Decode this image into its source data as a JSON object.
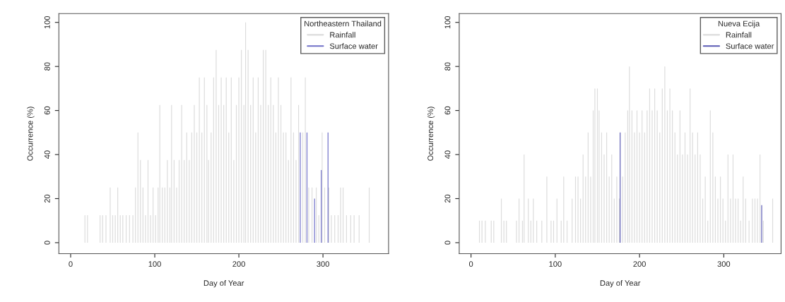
{
  "chart_data": [
    {
      "type": "bar",
      "xlabel": "Day of Year",
      "ylabel": "Occurrence (%)",
      "legend_title": "Northeastern Thailand",
      "legend": "top right",
      "grid": false,
      "xlim": [
        -14,
        378
      ],
      "ylim": [
        -5,
        104
      ],
      "xticks": [
        0,
        100,
        200,
        300
      ],
      "yticks": [
        0,
        20,
        40,
        60,
        80,
        100
      ],
      "series": [
        {
          "name": "Rainfall",
          "color": "#dcdcdc",
          "x": [
            17,
            20,
            35,
            38,
            42,
            47,
            50,
            53,
            56,
            59,
            62,
            66,
            70,
            74,
            77,
            80,
            83,
            86,
            89,
            92,
            95,
            98,
            101,
            104,
            106,
            109,
            112,
            115,
            118,
            120,
            123,
            126,
            129,
            132,
            135,
            138,
            141,
            144,
            147,
            150,
            153,
            156,
            159,
            162,
            164,
            167,
            170,
            173,
            176,
            179,
            182,
            185,
            188,
            191,
            194,
            197,
            200,
            203,
            206,
            208,
            211,
            214,
            217,
            220,
            223,
            226,
            229,
            232,
            235,
            238,
            241,
            244,
            247,
            250,
            253,
            256,
            259,
            262,
            265,
            268,
            271,
            276,
            279,
            283,
            287,
            292,
            295,
            299,
            302,
            307,
            310,
            314,
            318,
            321,
            324,
            328,
            333,
            337,
            343,
            355
          ],
          "values": [
            12.5,
            12.5,
            12.5,
            12.5,
            12.5,
            25,
            12.5,
            12.5,
            25,
            12.5,
            12.5,
            12.5,
            12.5,
            12.5,
            25,
            50,
            37.5,
            25,
            12.5,
            37.5,
            12.5,
            25,
            12.5,
            25,
            62.5,
            25,
            25,
            37.5,
            25,
            62.5,
            37.5,
            25,
            37.5,
            62.5,
            37.5,
            50,
            37.5,
            50,
            62.5,
            50,
            75,
            50,
            75,
            62.5,
            37.5,
            50,
            75,
            87.5,
            62.5,
            75,
            62.5,
            75,
            50,
            75,
            37.5,
            62.5,
            75,
            87.5,
            62.5,
            100,
            87.5,
            62.5,
            75,
            50,
            75,
            62.5,
            87.5,
            87.5,
            62.5,
            75,
            62.5,
            50,
            75,
            62.5,
            50,
            50,
            37.5,
            75,
            50,
            37.5,
            62.5,
            50,
            75,
            25,
            25,
            25,
            12.5,
            50,
            25,
            25,
            12.5,
            12.5,
            12.5,
            25,
            25,
            12.5,
            12.5,
            12.5,
            12.5,
            25
          ]
        },
        {
          "name": "Surface water",
          "color": "#7070c8",
          "x": [
            273,
            281,
            290,
            298,
            306
          ],
          "values": [
            50,
            50,
            20,
            33,
            50
          ]
        }
      ]
    },
    {
      "type": "bar",
      "xlabel": "Day of Year",
      "ylabel": "Occurrence (%)",
      "legend_title": "Nueva Ecija",
      "legend": "top right",
      "grid": false,
      "xlim": [
        -14,
        368
      ],
      "ylim": [
        -5,
        104
      ],
      "xticks": [
        0,
        100,
        200,
        300
      ],
      "yticks": [
        0,
        20,
        40,
        60,
        80,
        100
      ],
      "series": [
        {
          "name": "Rainfall",
          "color": "#dcdcdc",
          "x": [
            10,
            13,
            17,
            24,
            27,
            36,
            39,
            42,
            54,
            57,
            61,
            63,
            68,
            71,
            74,
            78,
            84,
            90,
            95,
            98,
            102,
            107,
            110,
            114,
            120,
            124,
            127,
            130,
            133,
            136,
            139,
            142,
            145,
            147,
            150,
            152,
            155,
            158,
            161,
            164,
            167,
            170,
            173,
            176,
            180,
            183,
            186,
            188,
            191,
            194,
            197,
            200,
            203,
            206,
            209,
            212,
            215,
            218,
            221,
            224,
            227,
            230,
            233,
            236,
            239,
            242,
            245,
            248,
            251,
            254,
            257,
            260,
            263,
            266,
            269,
            272,
            275,
            278,
            281,
            284,
            287,
            290,
            293,
            296,
            299,
            302,
            305,
            308,
            311,
            314,
            317,
            320,
            323,
            326,
            330,
            334,
            337,
            340,
            343,
            347,
            358
          ],
          "values": [
            10,
            10,
            10,
            10,
            10,
            20,
            10,
            10,
            10,
            20,
            10,
            40,
            20,
            10,
            20,
            10,
            10,
            30,
            10,
            10,
            20,
            10,
            30,
            10,
            20,
            30,
            30,
            20,
            40,
            30,
            50,
            30,
            60,
            70,
            70,
            60,
            50,
            40,
            50,
            30,
            40,
            20,
            30,
            20,
            30,
            50,
            60,
            80,
            60,
            50,
            60,
            50,
            60,
            50,
            60,
            70,
            60,
            70,
            60,
            50,
            70,
            80,
            60,
            70,
            60,
            50,
            40,
            60,
            40,
            50,
            40,
            70,
            50,
            40,
            50,
            40,
            20,
            30,
            10,
            60,
            50,
            30,
            20,
            30,
            20,
            10,
            40,
            20,
            40,
            20,
            20,
            10,
            30,
            20,
            10,
            20,
            20,
            20,
            40,
            10,
            20
          ]
        },
        {
          "name": "Surface water",
          "color": "#5a5ab4",
          "x": [
            177,
            345
          ],
          "values": [
            50,
            17
          ]
        }
      ]
    }
  ]
}
